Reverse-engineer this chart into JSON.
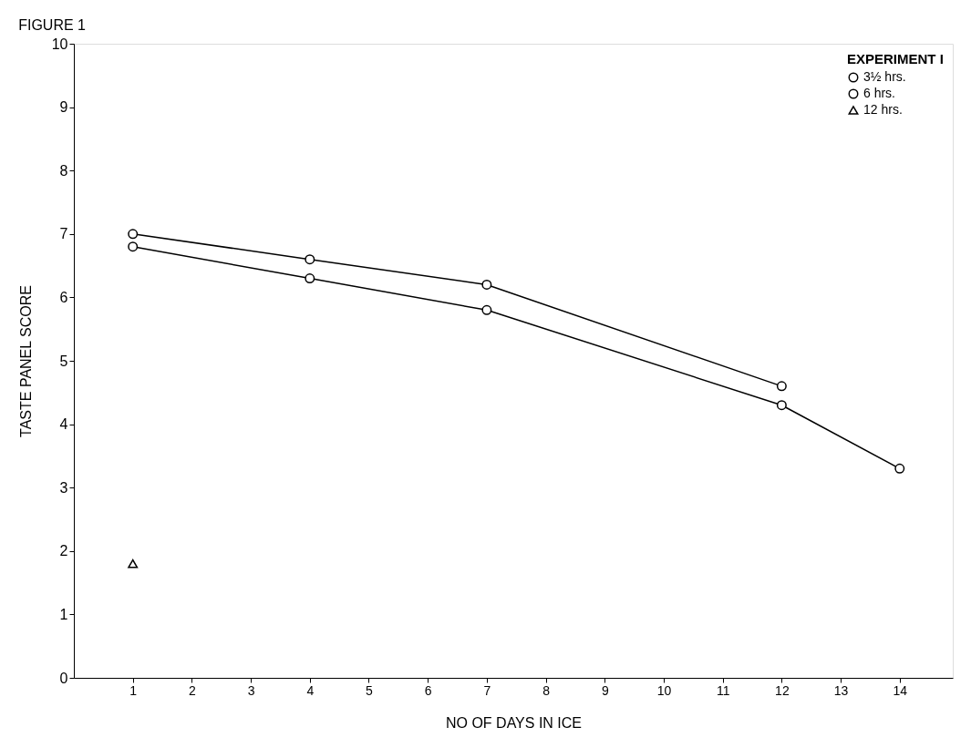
{
  "chart_data": {
    "type": "line",
    "title": "FIGURE 1",
    "xlabel": "NO OF DAYS IN ICE",
    "ylabel": "TASTE PANEL SCORE",
    "legend_title": "EXPERIMENT I",
    "legend": "top right",
    "grid": false,
    "line_style": "solid",
    "xlim": [
      0,
      14.9
    ],
    "xticks": [
      1,
      2,
      3,
      4,
      5,
      6,
      7,
      8,
      9,
      10,
      11,
      12,
      13,
      14
    ],
    "ylim": [
      0,
      10
    ],
    "yticks": [
      0,
      1,
      2,
      3,
      4,
      5,
      6,
      7,
      8,
      9,
      10
    ],
    "series": [
      {
        "name": "3½ hrs.",
        "color": "#000000",
        "marker": "circle",
        "x": [
          1,
          4,
          7,
          12
        ],
        "values": [
          7.0,
          6.6,
          6.2,
          4.6
        ]
      },
      {
        "name": "6 hrs.",
        "color": "#000000",
        "marker": "circle",
        "x": [
          1,
          4,
          7,
          12,
          14
        ],
        "values": [
          6.8,
          6.3,
          5.8,
          4.3,
          3.3
        ]
      },
      {
        "name": "12 hrs.",
        "color": "#000000",
        "type": "scatter",
        "marker": "triangle",
        "x": [
          1
        ],
        "values": [
          1.8
        ]
      }
    ]
  }
}
